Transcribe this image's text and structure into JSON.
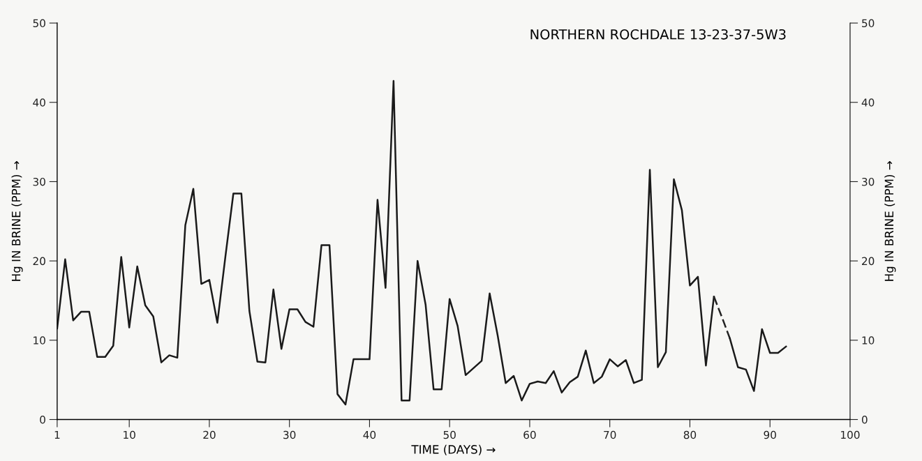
{
  "chart_data": {
    "type": "line",
    "title": "NORTHERN ROCHDALE 13-23-37-5W3",
    "xlabel": "TIME (DAYS) →",
    "ylabel": "Hg IN BRINE (PPM) →",
    "y2label": "Hg IN BRINE (PPM) →",
    "xlim": [
      1,
      100
    ],
    "xticks": [
      1,
      10,
      20,
      30,
      40,
      50,
      60,
      70,
      80,
      90,
      100
    ],
    "ylim": [
      0,
      50
    ],
    "yticks": [
      0,
      10,
      20,
      30,
      40,
      50
    ],
    "y2lim": [
      0,
      50
    ],
    "y2ticks": [
      0,
      10,
      20,
      30,
      40,
      50
    ],
    "grid": false,
    "legend": false,
    "marker": "none",
    "series": [
      {
        "color": "#1a1a1a",
        "line_style": "solid",
        "x": [
          1,
          2,
          3,
          4,
          5,
          6,
          7,
          8,
          9,
          10,
          11,
          12,
          13,
          14,
          15,
          16,
          17,
          18,
          19,
          20,
          21,
          22,
          23,
          24,
          25,
          26,
          27,
          28,
          29,
          30,
          31,
          32,
          33,
          34,
          35,
          36,
          37,
          38,
          39,
          40,
          41,
          42,
          43,
          44,
          45,
          46,
          47,
          48,
          49,
          50,
          51,
          52,
          53,
          54,
          55,
          56,
          57,
          58,
          59,
          60,
          61,
          62,
          63,
          64,
          65,
          66,
          67,
          68,
          69,
          70,
          71,
          72,
          73,
          74,
          75,
          76,
          77,
          78,
          79,
          80,
          81,
          82,
          83,
          84,
          85,
          86,
          87,
          88,
          89,
          90,
          91,
          92
        ],
        "values": [
          11.5,
          20.2,
          12.5,
          13.6,
          13.6,
          7.9,
          7.9,
          9.3,
          20.5,
          11.6,
          19.3,
          14.4,
          13.0,
          7.2,
          8.1,
          7.8,
          24.5,
          29.1,
          17.1,
          17.6,
          12.2,
          20.5,
          28.5,
          28.5,
          13.7,
          7.3,
          7.2,
          16.4,
          8.9,
          13.9,
          13.9,
          12.3,
          11.7,
          22.0,
          22.0,
          3.2,
          1.9,
          7.6,
          7.6,
          7.6,
          27.7,
          16.6,
          42.7,
          2.4,
          2.4,
          20.0,
          14.5,
          3.8,
          3.8,
          15.2,
          11.8,
          5.6,
          6.5,
          7.4,
          15.9,
          10.6,
          4.6,
          5.5,
          2.4,
          4.5,
          4.8,
          4.6,
          6.1,
          3.4,
          4.7,
          5.4,
          8.7,
          4.6,
          5.4,
          7.6,
          6.7,
          7.5,
          4.6,
          5.0,
          31.5,
          6.6,
          8.5,
          30.3,
          26.4,
          16.9,
          18.0,
          6.8,
          15.5,
          null,
          10.2,
          6.6,
          6.3,
          3.6,
          11.4,
          8.4,
          8.4,
          9.2
        ]
      },
      {
        "color": "#222222",
        "line_style": "dashed",
        "x": [
          83,
          84,
          85
        ],
        "values": [
          15.5,
          12.9,
          10.2
        ]
      }
    ]
  }
}
